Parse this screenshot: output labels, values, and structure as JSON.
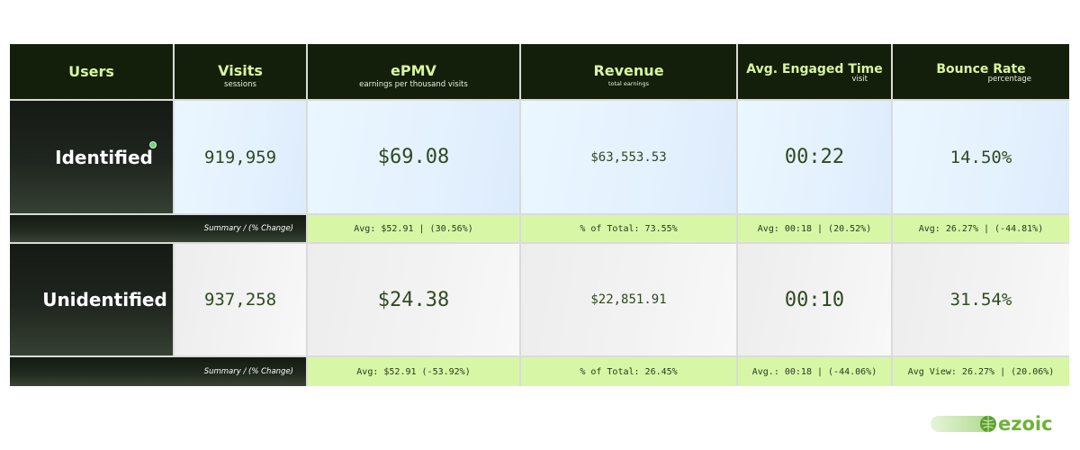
{
  "header": {
    "users": {
      "title": "Users"
    },
    "visits": {
      "title": "Visits",
      "sub": "sessions"
    },
    "epmv": {
      "title": "ePMV",
      "sub": "earnings per thousand visits"
    },
    "revenue": {
      "title": "Revenue",
      "sub": "total earnings"
    },
    "engaged": {
      "title": "Avg. Engaged Time",
      "sub": "visit"
    },
    "bounce": {
      "title": "Bounce Rate",
      "sub": "percentage"
    }
  },
  "rows": [
    {
      "label": "Identified",
      "visits": "919,959",
      "epmv": "$69.08",
      "revenue": "$63,553.53",
      "engaged": "00:22",
      "bounce": "14.50%",
      "summary": {
        "label": "Summary / (% Change)",
        "epmv": "Avg: $52.91 | (30.56%)",
        "revenue": "% of Total: 73.55%",
        "engaged": "Avg: 00:18 | (20.52%)",
        "bounce": "Avg: 26.27% | (-44.81%)"
      }
    },
    {
      "label": "Unidentified",
      "visits": "937,258",
      "epmv": "$24.38",
      "revenue": "$22,851.91",
      "engaged": "00:10",
      "bounce": "31.54%",
      "summary": {
        "label": "Summary / (% Change)",
        "epmv": "Avg: $52.91 (-53.92%)",
        "revenue": "% of Total: 26.45%",
        "engaged": "Avg.: 00:18 | (-44.06%)",
        "bounce": "Avg View: 26.27% | (20.06%)"
      }
    }
  ],
  "logo": {
    "text": "ezoic",
    "brand_color": "#7bc043"
  },
  "colors": {
    "header_bg": "#141f0b",
    "header_text": "#d9f5a0",
    "summary_bg": "#d7f7a6",
    "value_text": "#2f4a1f",
    "identified_dot": "#6fd07a"
  }
}
